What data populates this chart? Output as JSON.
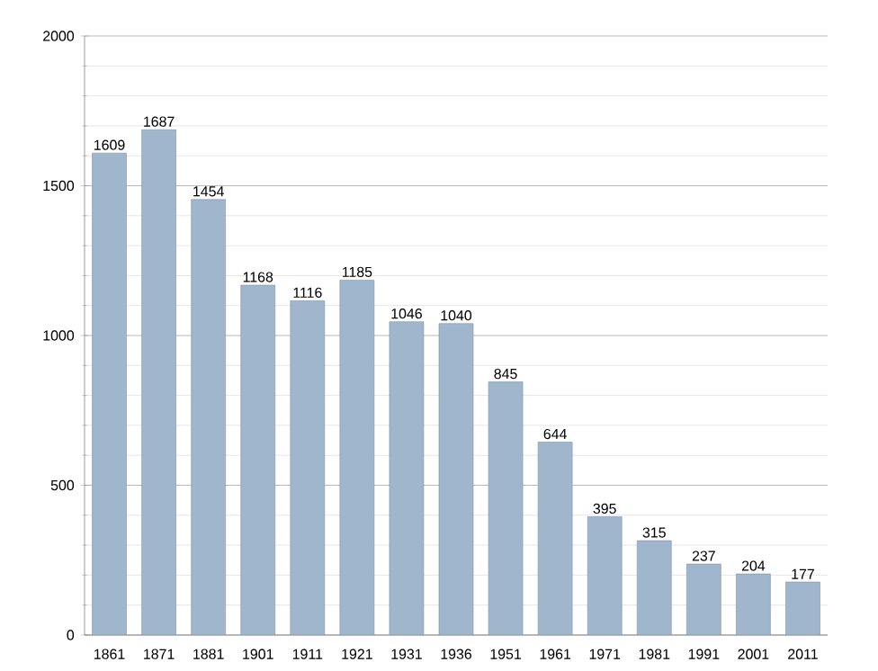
{
  "chart_data": {
    "type": "bar",
    "categories": [
      "1861",
      "1871",
      "1881",
      "1901",
      "1911",
      "1921",
      "1931",
      "1936",
      "1951",
      "1961",
      "1971",
      "1981",
      "1991",
      "2001",
      "2011"
    ],
    "values": [
      1609,
      1687,
      1454,
      1168,
      1116,
      1185,
      1046,
      1040,
      845,
      644,
      395,
      315,
      237,
      204,
      177
    ],
    "color": "#9fb6cd",
    "ylim": [
      0,
      2000
    ],
    "yticks": [
      0,
      500,
      1000,
      1500,
      2000
    ],
    "grid": "y",
    "data_labels": true
  }
}
